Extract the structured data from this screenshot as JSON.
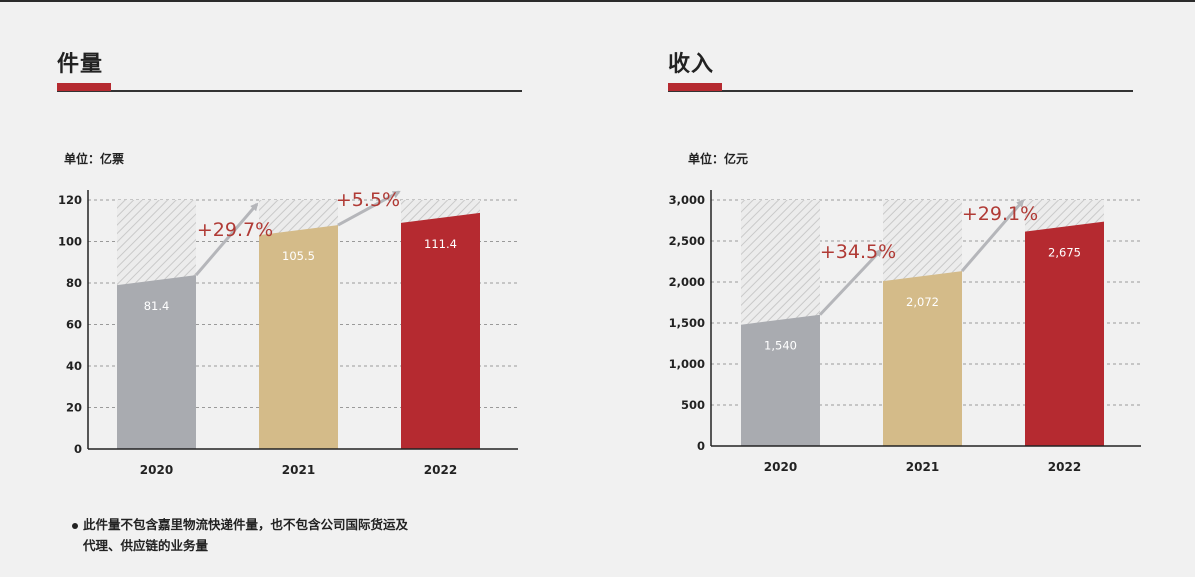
{
  "colors": {
    "accent": "#b52a30",
    "gray_bar": "#a9abb0",
    "gold_bar": "#d4bb89",
    "red_bar": "#b52a30",
    "arrow": "#b5b6ba",
    "growth_text": "#b03a35"
  },
  "panels": [
    {
      "title": "件量",
      "unit_label": "单位：亿票"
    },
    {
      "title": "收入",
      "unit_label": "单位：亿元"
    }
  ],
  "footnote": {
    "line1": "此件量不包含嘉里物流快递件量，也不包含公司国际货运及",
    "line2": "代理、供应链的业务量"
  },
  "chart_data": [
    {
      "type": "bar",
      "title": "件量",
      "unit": "单位：亿票",
      "categories": [
        "2020",
        "2021",
        "2022"
      ],
      "values": [
        81.4,
        105.5,
        111.4
      ],
      "value_labels": [
        "81.4",
        "105.5",
        "111.4"
      ],
      "y_ticks": [
        0,
        20,
        40,
        60,
        80,
        100,
        120
      ],
      "y_tick_labels": [
        "0",
        "20",
        "40",
        "60",
        "80",
        "100",
        "120"
      ],
      "ylim": [
        0,
        120
      ],
      "growth": [
        "+29.7%",
        "+5.5%"
      ],
      "grid": true,
      "bar_colors": [
        "#a9abb0",
        "#d4bb89",
        "#b52a30"
      ]
    },
    {
      "type": "bar",
      "title": "收入",
      "unit": "单位：亿元",
      "categories": [
        "2020",
        "2021",
        "2022"
      ],
      "values": [
        1540,
        2072,
        2675
      ],
      "value_labels": [
        "1,540",
        "2,072",
        "2,675"
      ],
      "y_ticks": [
        0,
        500,
        1000,
        1500,
        2000,
        2500,
        3000
      ],
      "y_tick_labels": [
        "0",
        "500",
        "1,000",
        "1,500",
        "2,000",
        "2,500",
        "3,000"
      ],
      "ylim": [
        0,
        3000
      ],
      "growth": [
        "+34.5%",
        "+29.1%"
      ],
      "grid": true,
      "bar_colors": [
        "#a9abb0",
        "#d4bb89",
        "#b52a30"
      ]
    }
  ]
}
